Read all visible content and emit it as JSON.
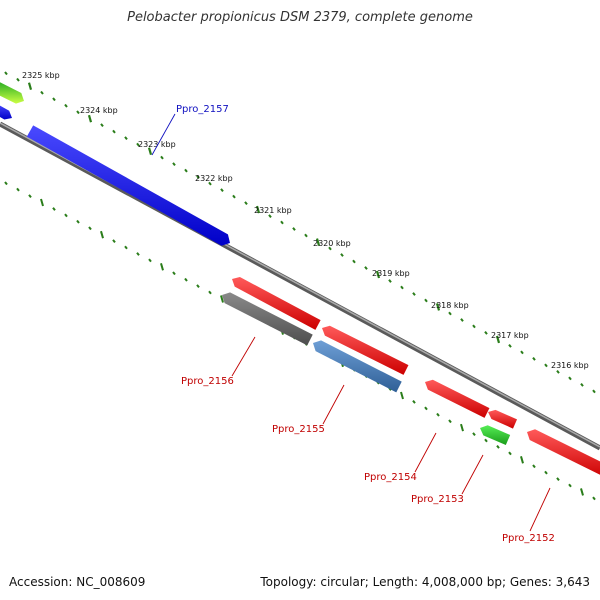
{
  "title": "Pelobacter propionicus DSM 2379, complete genome",
  "footer": {
    "accession": "Accession: NC_008609",
    "topology": "Topology: circular; Length: 4,008,000 bp; Genes: 3,643"
  },
  "colors": {
    "backbone": "#7a7a7a",
    "tick": "#2a7d1a",
    "forward_label": "#1010c0",
    "reverse_label": "#c00000"
  },
  "scale_ticks": [
    {
      "label": "2325 kbp"
    },
    {
      "label": "2324 kbp"
    },
    {
      "label": "2323 kbp"
    },
    {
      "label": "2322 kbp"
    },
    {
      "label": "2321 kbp"
    },
    {
      "label": "2320 kbp"
    },
    {
      "label": "2319 kbp"
    },
    {
      "label": "2318 kbp"
    },
    {
      "label": "2317 kbp"
    },
    {
      "label": "2316 kbp"
    }
  ],
  "genes": [
    {
      "label": "Ppro_2157",
      "strand": "forward",
      "color": "#1a1ae6"
    },
    {
      "label": "Ppro_2156",
      "strand": "reverse",
      "color": "#6e6e6e"
    },
    {
      "label": "Ppro_2155",
      "strand": "reverse",
      "color": "#4a7fb8"
    },
    {
      "label": "Ppro_2154",
      "strand": "reverse",
      "color": "#e61a1a"
    },
    {
      "label": "Ppro_2153",
      "strand": "reverse",
      "color": "#55bb22"
    },
    {
      "label": "Ppro_2152",
      "strand": "reverse",
      "color": "#e61a1a"
    }
  ]
}
